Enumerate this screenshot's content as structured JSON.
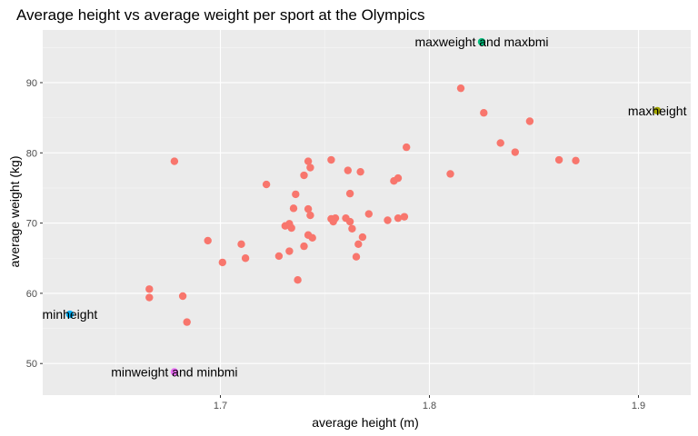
{
  "chart_data": {
    "type": "scatter",
    "title": "Average height vs average weight per sport at the Olympics",
    "xlabel": "average height (m)",
    "ylabel": "average weight (kg)",
    "xlim": [
      1.615,
      1.925
    ],
    "ylim": [
      45.5,
      97.5
    ],
    "xticks": [
      1.7,
      1.8,
      1.9
    ],
    "yticks": [
      50,
      60,
      70,
      80,
      90
    ],
    "xtick_labels": [
      "1.7",
      "1.8",
      "1.9"
    ],
    "ytick_labels": [
      "50",
      "60",
      "70",
      "80",
      "90"
    ],
    "grid": true,
    "legend": "none",
    "colors": {
      "panel": "#ebebeb",
      "grid_major": "#ffffff",
      "other": "#f8766d",
      "maxheight": "#a3a500",
      "maxweight": "#00bf7d",
      "minheight": "#00b0f6",
      "minweight": "#e76bf3"
    },
    "series": [
      {
        "color": "#f8766d",
        "points": [
          [
            1.678,
            78.8
          ],
          [
            1.666,
            60.6
          ],
          [
            1.666,
            59.4
          ],
          [
            1.682,
            59.6
          ],
          [
            1.684,
            55.9
          ],
          [
            1.694,
            67.5
          ],
          [
            1.701,
            64.4
          ],
          [
            1.71,
            67.0
          ],
          [
            1.712,
            65.0
          ],
          [
            1.722,
            75.5
          ],
          [
            1.728,
            65.3
          ],
          [
            1.731,
            69.6
          ],
          [
            1.733,
            69.9
          ],
          [
            1.734,
            69.3
          ],
          [
            1.733,
            66.0
          ],
          [
            1.735,
            72.1
          ],
          [
            1.736,
            74.1
          ],
          [
            1.737,
            61.9
          ],
          [
            1.74,
            66.7
          ],
          [
            1.74,
            76.8
          ],
          [
            1.742,
            78.8
          ],
          [
            1.743,
            77.9
          ],
          [
            1.742,
            72.0
          ],
          [
            1.743,
            71.1
          ],
          [
            1.742,
            68.3
          ],
          [
            1.744,
            67.9
          ],
          [
            1.753,
            79.0
          ],
          [
            1.753,
            70.6
          ],
          [
            1.755,
            70.7
          ],
          [
            1.754,
            70.2
          ],
          [
            1.76,
            70.7
          ],
          [
            1.761,
            77.5
          ],
          [
            1.762,
            74.2
          ],
          [
            1.762,
            70.2
          ],
          [
            1.763,
            69.2
          ],
          [
            1.765,
            65.2
          ],
          [
            1.766,
            67.0
          ],
          [
            1.767,
            77.3
          ],
          [
            1.768,
            68.0
          ],
          [
            1.771,
            71.3
          ],
          [
            1.78,
            70.4
          ],
          [
            1.783,
            76.0
          ],
          [
            1.785,
            76.4
          ],
          [
            1.785,
            70.7
          ],
          [
            1.788,
            70.9
          ],
          [
            1.789,
            80.8
          ],
          [
            1.81,
            77.0
          ],
          [
            1.815,
            89.2
          ],
          [
            1.826,
            85.7
          ],
          [
            1.834,
            81.4
          ],
          [
            1.841,
            80.1
          ],
          [
            1.848,
            84.5
          ],
          [
            1.862,
            79.0
          ],
          [
            1.87,
            78.9
          ]
        ]
      },
      {
        "color": "#a3a500",
        "points": [
          [
            1.909,
            86.0
          ]
        ],
        "label": "maxheight"
      },
      {
        "color": "#00bf7d",
        "points": [
          [
            1.825,
            95.8
          ]
        ],
        "label": "maxweight and maxbmi"
      },
      {
        "color": "#00b0f6",
        "points": [
          [
            1.628,
            57.0
          ]
        ],
        "label": "minheight"
      },
      {
        "color": "#e76bf3",
        "points": [
          [
            1.678,
            48.8
          ]
        ],
        "label": "minweight and minbmi"
      }
    ]
  }
}
